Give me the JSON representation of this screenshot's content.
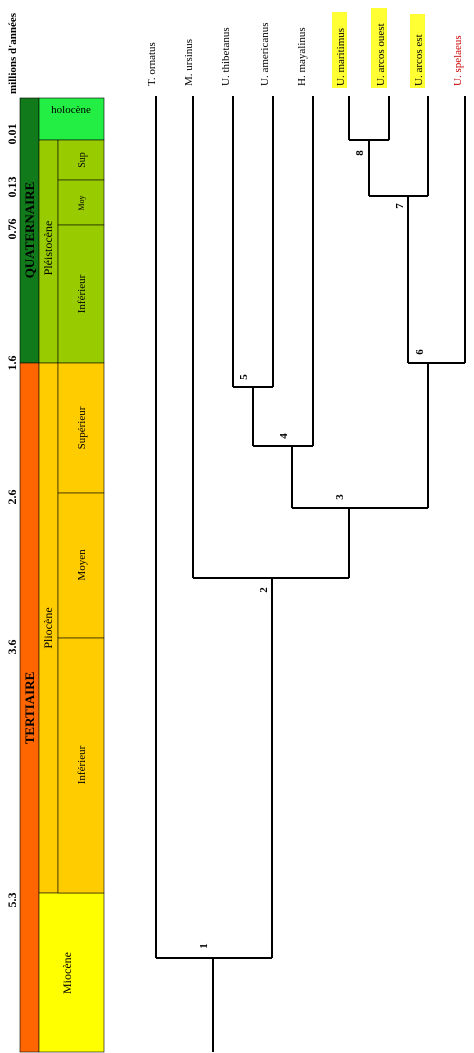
{
  "axis_title": "millions d'années",
  "time_ticks": [
    "0.01",
    "0.13",
    "0.76",
    "1.6",
    "2.6",
    "3.6",
    "5.3"
  ],
  "eras": {
    "quaternary": "QUATERNAIRE",
    "tertiary": "TERTIAIRE"
  },
  "epochs": {
    "holocene": "holocène",
    "pleistocene": "Pléistocène",
    "pliocene": "Pliocène",
    "miocene": "Miocène"
  },
  "stages": {
    "sup": "Sup",
    "moy": "Moy",
    "pleist_inferieur": "Inférieur",
    "superieur": "Supérieur",
    "moyen": "Moyen",
    "plio_inferieur": "Inférieur"
  },
  "taxa": [
    "T. ornatus",
    "M. ursinus",
    "U. thibetanus",
    "U. americanus",
    "H. mayalinus",
    "U. maritimus",
    "U. arcos ouest",
    "U. arcos est",
    "U. spelaeus"
  ],
  "nodes": [
    "1",
    "2",
    "3",
    "4",
    "5",
    "6",
    "7",
    "8"
  ],
  "colors": {
    "quaternary": "#117a1b",
    "pleistocene": "#99cc00",
    "holocene": "#22ee44",
    "tertiary": "#ff6600",
    "pliocene": "#ffcc00",
    "miocene": "#ffff00",
    "highlight": "#ffff33",
    "red_text": "#cc0000"
  }
}
